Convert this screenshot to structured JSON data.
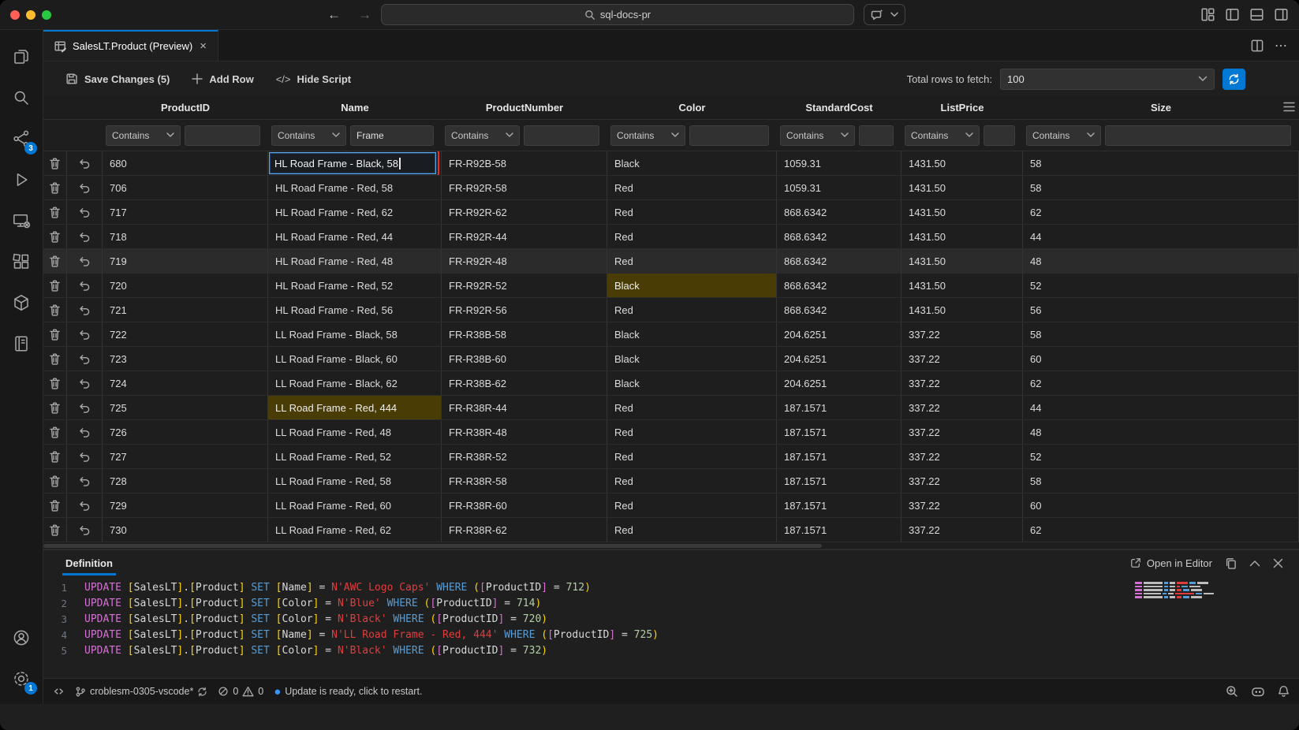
{
  "titlebar": {
    "search_text": "sql-docs-pr",
    "back_arrow": "←",
    "forward_arrow": "→"
  },
  "tab": {
    "title": "SalesLT.Product (Preview)",
    "close": "×"
  },
  "tab_actions": {
    "more": "⋯"
  },
  "toolbar": {
    "save": "Save Changes (5)",
    "add_row": "Add Row",
    "hide_script_icon": "</>",
    "hide_script": "Hide Script",
    "total_rows_label": "Total rows to fetch:",
    "total_rows_value": "100"
  },
  "grid": {
    "columns": [
      "ProductID",
      "Name",
      "ProductNumber",
      "Color",
      "StandardCost",
      "ListPrice",
      "Size"
    ],
    "filter_operator": "Contains",
    "filters": {
      "Name": "Frame"
    },
    "edit_cell": {
      "row_id": "680",
      "column": "Name",
      "value": "HL Road Frame - Black, 58"
    },
    "rows": [
      {
        "cells": [
          "680",
          "HL Road Frame - Black, 58",
          "FR-R92B-58",
          "Black",
          "1059.31",
          "1431.50",
          "58"
        ],
        "edit": true
      },
      {
        "cells": [
          "706",
          "HL Road Frame - Red, 58",
          "FR-R92R-58",
          "Red",
          "1059.31",
          "1431.50",
          "58"
        ]
      },
      {
        "cells": [
          "717",
          "HL Road Frame - Red, 62",
          "FR-R92R-62",
          "Red",
          "868.6342",
          "1431.50",
          "62"
        ]
      },
      {
        "cells": [
          "718",
          "HL Road Frame - Red, 44",
          "FR-R92R-44",
          "Red",
          "868.6342",
          "1431.50",
          "44"
        ]
      },
      {
        "cells": [
          "719",
          "HL Road Frame - Red, 48",
          "FR-R92R-48",
          "Red",
          "868.6342",
          "1431.50",
          "48"
        ],
        "hover": true
      },
      {
        "cells": [
          "720",
          "HL Road Frame - Red, 52",
          "FR-R92R-52",
          "Black",
          "868.6342",
          "1431.50",
          "52"
        ],
        "modified": 3
      },
      {
        "cells": [
          "721",
          "HL Road Frame - Red, 56",
          "FR-R92R-56",
          "Red",
          "868.6342",
          "1431.50",
          "56"
        ]
      },
      {
        "cells": [
          "722",
          "LL Road Frame - Black, 58",
          "FR-R38B-58",
          "Black",
          "204.6251",
          "337.22",
          "58"
        ]
      },
      {
        "cells": [
          "723",
          "LL Road Frame - Black, 60",
          "FR-R38B-60",
          "Black",
          "204.6251",
          "337.22",
          "60"
        ]
      },
      {
        "cells": [
          "724",
          "LL Road Frame - Black, 62",
          "FR-R38B-62",
          "Black",
          "204.6251",
          "337.22",
          "62"
        ]
      },
      {
        "cells": [
          "725",
          "LL Road Frame - Red, 444",
          "FR-R38R-44",
          "Red",
          "187.1571",
          "337.22",
          "44"
        ],
        "modified": 1
      },
      {
        "cells": [
          "726",
          "LL Road Frame - Red, 48",
          "FR-R38R-48",
          "Red",
          "187.1571",
          "337.22",
          "48"
        ]
      },
      {
        "cells": [
          "727",
          "LL Road Frame - Red, 52",
          "FR-R38R-52",
          "Red",
          "187.1571",
          "337.22",
          "52"
        ]
      },
      {
        "cells": [
          "728",
          "LL Road Frame - Red, 58",
          "FR-R38R-58",
          "Red",
          "187.1571",
          "337.22",
          "58"
        ]
      },
      {
        "cells": [
          "729",
          "LL Road Frame - Red, 60",
          "FR-R38R-60",
          "Red",
          "187.1571",
          "337.22",
          "60"
        ]
      },
      {
        "cells": [
          "730",
          "LL Road Frame - Red, 62",
          "FR-R38R-62",
          "Red",
          "187.1571",
          "337.22",
          "62"
        ]
      }
    ]
  },
  "definition": {
    "title": "Definition",
    "open_in_editor": "Open in Editor",
    "statements": [
      {
        "line": "1",
        "keyword": "UPDATE",
        "schema": "SalesLT",
        "table": "Product",
        "set_keyword": "SET",
        "set_column": "Name",
        "set_value": "AWC Logo Caps",
        "where_keyword": "WHERE",
        "where_column": "ProductID",
        "where_value": "712"
      },
      {
        "line": "2",
        "keyword": "UPDATE",
        "schema": "SalesLT",
        "table": "Product",
        "set_keyword": "SET",
        "set_column": "Color",
        "set_value": "Blue",
        "where_keyword": "WHERE",
        "where_column": "ProductID",
        "where_value": "714"
      },
      {
        "line": "3",
        "keyword": "UPDATE",
        "schema": "SalesLT",
        "table": "Product",
        "set_keyword": "SET",
        "set_column": "Color",
        "set_value": "Black",
        "where_keyword": "WHERE",
        "where_column": "ProductID",
        "where_value": "720"
      },
      {
        "line": "4",
        "keyword": "UPDATE",
        "schema": "SalesLT",
        "table": "Product",
        "set_keyword": "SET",
        "set_column": "Name",
        "set_value": "LL Road Frame - Red, 444",
        "where_keyword": "WHERE",
        "where_column": "ProductID",
        "where_value": "725"
      },
      {
        "line": "5",
        "keyword": "UPDATE",
        "schema": "SalesLT",
        "table": "Product",
        "set_keyword": "SET",
        "set_column": "Color",
        "set_value": "Black",
        "where_keyword": "WHERE",
        "where_column": "ProductID",
        "where_value": "732"
      }
    ]
  },
  "statusbar": {
    "workspace": "croblesm-0305-vscode*",
    "error_count": "0",
    "warning_count": "0",
    "message": "Update is ready, click to restart."
  },
  "badges": {
    "connections": "3",
    "settings": "1"
  },
  "colors": {
    "accent": "#0078d4",
    "modified_cell_background": "#4a3c05",
    "edit_outline_red": "#e8321e",
    "edit_border_blue": "#5aa3e8",
    "sql_update_keyword": "#d670d6",
    "sql_secondary_keyword": "#569cd6",
    "sql_string": "#e03e3e",
    "sql_number": "#b5cea8",
    "bracket_level1": "#ffd602",
    "bracket_level2": "#da70d6",
    "traffic_red": "#ff5f57",
    "traffic_yellow": "#febc2e",
    "traffic_green": "#28c840"
  }
}
